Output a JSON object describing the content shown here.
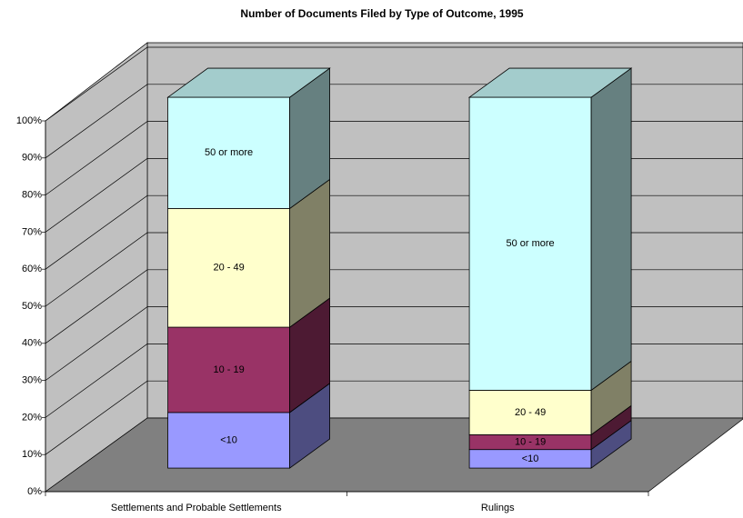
{
  "chart_data": {
    "type": "bar",
    "stacked": true,
    "title": "Number of Documents Filed by Type of Outcome, 1995",
    "categories": [
      "Settlements and Probable Settlements",
      "Rulings"
    ],
    "series": [
      {
        "name": "<10",
        "color": "#9999ff",
        "values": [
          15,
          5
        ]
      },
      {
        "name": "10 - 19",
        "color": "#993366",
        "values": [
          23,
          4
        ]
      },
      {
        "name": "20 - 49",
        "color": "#ffffcc",
        "values": [
          32,
          12
        ]
      },
      {
        "name": "50 or more",
        "color": "#ccffff",
        "values": [
          30,
          79
        ]
      }
    ],
    "ylim": [
      0,
      100
    ],
    "yticks": [
      {
        "value": 0,
        "label": "0%"
      },
      {
        "value": 10,
        "label": "10%"
      },
      {
        "value": 20,
        "label": "20%"
      },
      {
        "value": 30,
        "label": "30%"
      },
      {
        "value": 40,
        "label": "40%"
      },
      {
        "value": 50,
        "label": "50%"
      },
      {
        "value": 60,
        "label": "60%"
      },
      {
        "value": 70,
        "label": "70%"
      },
      {
        "value": 80,
        "label": "80%"
      },
      {
        "value": 90,
        "label": "90%"
      },
      {
        "value": 100,
        "label": "100%"
      }
    ],
    "grid": true
  }
}
